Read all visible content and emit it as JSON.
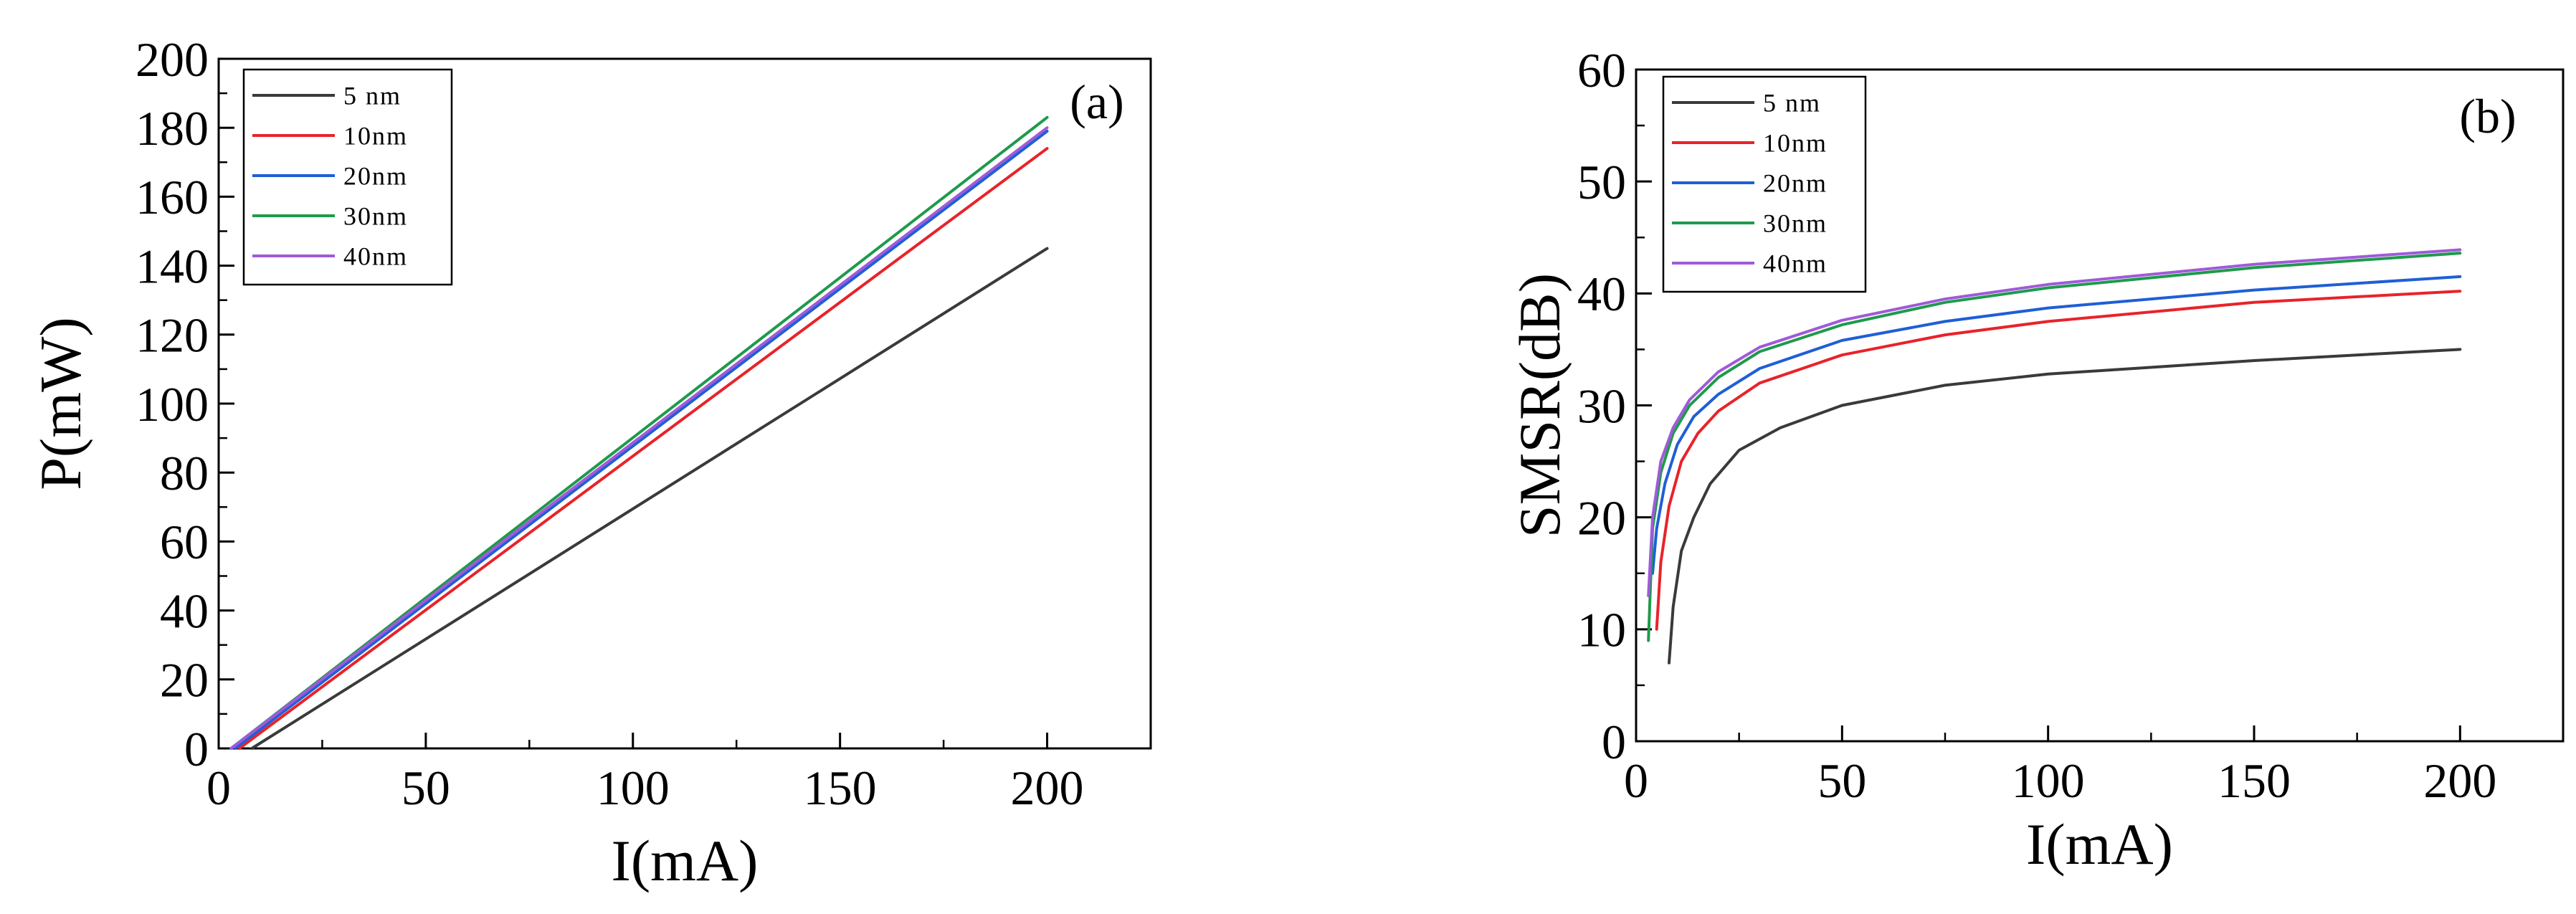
{
  "chart_data": [
    {
      "type": "line",
      "panel_label": "(a)",
      "xlabel": "I(mA)",
      "ylabel": "P(mW)",
      "xlim": [
        0,
        225
      ],
      "ylim": [
        0,
        200
      ],
      "xticks": [
        0,
        50,
        100,
        150,
        200
      ],
      "yticks": [
        0,
        20,
        40,
        60,
        80,
        100,
        120,
        140,
        160,
        180,
        200
      ],
      "legend_position": "top-left",
      "grid": false,
      "series": [
        {
          "name": "5 nm",
          "color": "#3a3a3a",
          "x": [
            8,
            200
          ],
          "y": [
            0,
            145
          ]
        },
        {
          "name": "10nm",
          "color": "#e8232a",
          "x": [
            5,
            200
          ],
          "y": [
            0,
            174
          ]
        },
        {
          "name": "20nm",
          "color": "#1f5fd6",
          "x": [
            4,
            200
          ],
          "y": [
            0,
            179
          ]
        },
        {
          "name": "30nm",
          "color": "#1e9a4c",
          "x": [
            3,
            200
          ],
          "y": [
            0,
            183
          ]
        },
        {
          "name": "40nm",
          "color": "#a05ad8",
          "x": [
            3,
            200
          ],
          "y": [
            0,
            180
          ]
        }
      ]
    },
    {
      "type": "line",
      "panel_label": "(b)",
      "xlabel": "I(mA)",
      "ylabel": "SMSR(dB)",
      "xlim": [
        0,
        225
      ],
      "ylim": [
        0,
        60
      ],
      "xticks": [
        0,
        50,
        100,
        150,
        200
      ],
      "yticks": [
        0,
        10,
        20,
        30,
        40,
        50,
        60
      ],
      "legend_position": "top-left",
      "grid": false,
      "series": [
        {
          "name": "5 nm",
          "color": "#3a3a3a",
          "x": [
            8,
            9,
            11,
            14,
            18,
            25,
            35,
            50,
            75,
            100,
            150,
            200
          ],
          "y": [
            7,
            12,
            17,
            20,
            23,
            26,
            28,
            30,
            31.8,
            32.8,
            34,
            35
          ]
        },
        {
          "name": "10nm",
          "color": "#e8232a",
          "x": [
            5,
            6,
            8,
            11,
            15,
            20,
            30,
            50,
            75,
            100,
            150,
            200
          ],
          "y": [
            10,
            16,
            21,
            25,
            27.5,
            29.5,
            32,
            34.5,
            36.3,
            37.5,
            39.2,
            40.2
          ]
        },
        {
          "name": "20nm",
          "color": "#1f5fd6",
          "x": [
            4,
            5,
            7,
            10,
            14,
            20,
            30,
            50,
            75,
            100,
            150,
            200
          ],
          "y": [
            15,
            19,
            23,
            26.5,
            29,
            31,
            33.3,
            35.8,
            37.5,
            38.7,
            40.3,
            41.5
          ]
        },
        {
          "name": "30nm",
          "color": "#1e9a4c",
          "x": [
            3,
            4,
            6,
            9,
            13,
            20,
            30,
            50,
            75,
            100,
            150,
            200
          ],
          "y": [
            9,
            19,
            24,
            27.5,
            30,
            32.5,
            34.8,
            37.2,
            39.2,
            40.5,
            42.3,
            43.6
          ]
        },
        {
          "name": "40nm",
          "color": "#a05ad8",
          "x": [
            3,
            4,
            6,
            9,
            13,
            20,
            30,
            50,
            75,
            100,
            150,
            200
          ],
          "y": [
            13,
            20,
            25,
            28,
            30.5,
            33,
            35.2,
            37.6,
            39.5,
            40.8,
            42.6,
            43.9
          ]
        }
      ]
    }
  ]
}
